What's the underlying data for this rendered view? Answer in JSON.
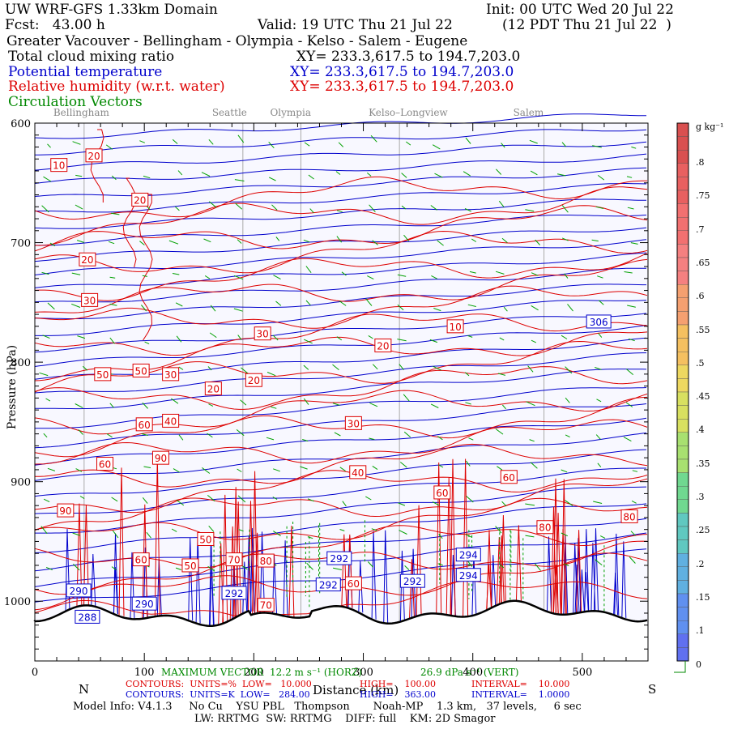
{
  "header": {
    "line1_left": "UW WRF-GFS 1.33km Domain",
    "line1_right": "Init: 00 UTC Wed 20 Jul 22",
    "line2_left": "Fcst:   43.00 h",
    "line2_mid": "Valid: 19 UTC Thu 21 Jul 22",
    "line2_right": "(12 PDT Thu 21 Jul 22  )",
    "line3": "Greater Vacouver - Bellingham - Olympia - Kelso - Salem - Eugene",
    "f1_name": "Total cloud mixing ratio",
    "f1_xy": "XY= 233.3,617.5 to 194.7,203.0",
    "f2_name": "Potential temperature",
    "f2_xy": "XY= 233.3,617.5 to 194.7,203.0",
    "f3_name": "Relative humidity (w.r.t. water)",
    "f3_xy": "XY= 233.3,617.5 to 194.7,203.0",
    "f4_name": "Circulation Vectors"
  },
  "sites": [
    {
      "name": "Bellingham",
      "x": 45
    },
    {
      "name": "Seattle",
      "x": 190
    },
    {
      "name": "Olympia",
      "x": 243
    },
    {
      "name": "Kelso–Longview",
      "x": 333
    },
    {
      "name": "Salem",
      "x": 465
    }
  ],
  "chart_data": {
    "type": "contour",
    "xlabel": "Distance (km)",
    "ylabel": "Pressure (hPa)",
    "xlim": [
      0,
      560
    ],
    "ylim": [
      1050,
      600
    ],
    "x_ticks": [
      0,
      100,
      200,
      300,
      400,
      500
    ],
    "y_ticks": [
      600,
      700,
      800,
      900,
      1000
    ],
    "x_end_labels": {
      "left": "N",
      "right": "S"
    },
    "colorbar": {
      "unit": "g kg⁻¹",
      "labels": [
        ".8",
        ".75",
        ".7",
        ".65",
        ".6",
        ".55",
        ".5",
        ".45",
        ".4",
        ".35",
        ".3",
        ".25",
        ".2",
        ".15",
        ".1",
        "0"
      ],
      "colors": [
        "#4040ff",
        "#40a0ff",
        "#40d0d0",
        "#40d090",
        "#80e060",
        "#c0e040",
        "#f0e040",
        "#f0c040",
        "#f0a040",
        "#f08040",
        "#f06060",
        "#f06080",
        "#e05060",
        "#d04050",
        "#c03040",
        "#d05050"
      ]
    },
    "rh_labels": [
      {
        "value": "10",
        "x": 22,
        "p": 635
      },
      {
        "value": "20",
        "x": 54,
        "p": 627
      },
      {
        "value": "20",
        "x": 96,
        "p": 664
      },
      {
        "value": "20",
        "x": 48,
        "p": 714
      },
      {
        "value": "30",
        "x": 50,
        "p": 748
      },
      {
        "value": "30",
        "x": 208,
        "p": 776
      },
      {
        "value": "20",
        "x": 318,
        "p": 786
      },
      {
        "value": "10",
        "x": 384,
        "p": 770
      },
      {
        "value": "50",
        "x": 62,
        "p": 810
      },
      {
        "value": "50",
        "x": 97,
        "p": 807
      },
      {
        "value": "30",
        "x": 124,
        "p": 810
      },
      {
        "value": "20",
        "x": 163,
        "p": 822
      },
      {
        "value": "20",
        "x": 200,
        "p": 815
      },
      {
        "value": "60",
        "x": 100,
        "p": 852
      },
      {
        "value": "40",
        "x": 124,
        "p": 849
      },
      {
        "value": "30",
        "x": 291,
        "p": 851
      },
      {
        "value": "90",
        "x": 115,
        "p": 880
      },
      {
        "value": "60",
        "x": 64,
        "p": 885
      },
      {
        "value": "40",
        "x": 295,
        "p": 892
      },
      {
        "value": "60",
        "x": 372,
        "p": 909
      },
      {
        "value": "60",
        "x": 433,
        "p": 896
      },
      {
        "value": "90",
        "x": 28,
        "p": 924
      },
      {
        "value": "80",
        "x": 543,
        "p": 929
      },
      {
        "value": "50",
        "x": 156,
        "p": 948
      },
      {
        "value": "80",
        "x": 466,
        "p": 938
      },
      {
        "value": "60",
        "x": 97,
        "p": 965
      },
      {
        "value": "50",
        "x": 142,
        "p": 970
      },
      {
        "value": "70",
        "x": 182,
        "p": 965
      },
      {
        "value": "80",
        "x": 211,
        "p": 966
      },
      {
        "value": "60",
        "x": 291,
        "p": 985
      },
      {
        "value": "70",
        "x": 211,
        "p": 1003
      }
    ],
    "theta_labels": [
      {
        "value": "306",
        "x": 515,
        "p": 766
      },
      {
        "value": "292",
        "x": 278,
        "p": 964
      },
      {
        "value": "292",
        "x": 268,
        "p": 986
      },
      {
        "value": "292",
        "x": 345,
        "p": 983
      },
      {
        "value": "294",
        "x": 396,
        "p": 961
      },
      {
        "value": "294",
        "x": 396,
        "p": 978
      },
      {
        "value": "290",
        "x": 40,
        "p": 991
      },
      {
        "value": "290",
        "x": 100,
        "p": 1002
      },
      {
        "value": "292",
        "x": 182,
        "p": 993
      },
      {
        "value": "288",
        "x": 48,
        "p": 1013
      }
    ],
    "theta_levels": {
      "low": 284,
      "high": 363,
      "interval": 1
    }
  },
  "footer": {
    "max_vec_label": "MAXIMUM VECTOR",
    "max_vec_h": "12.2 m s⁻¹ (HORZ)",
    "max_vec_v": "26.9 dPa s⁻¹ (VERT)",
    "rh_contours": "CONTOURS:  UNITS=%  LOW=   10.000",
    "rh_high": "HIGH=    100.00",
    "rh_interval": "INTERVAL=    10.000",
    "th_contours": "CONTOURS:  UNITS=K  LOW=   284.00",
    "th_high": "HIGH=    363.00",
    "th_interval": "INTERVAL=    1.0000",
    "model_info": "Model Info: V4.1.3     No Cu    YSU PBL   Thompson       Noah-MP    1.3 km,   37 levels,     6 sec",
    "model_info2": "LW: RRTMG  SW: RRTMG    DIFF: full    KM: 2D Smagor"
  },
  "colors": {
    "rh": "#dd0000",
    "theta": "#0000cc",
    "vectors": "#00a000",
    "terrain": "#000000",
    "plot_bg": "#f8f8ff"
  }
}
